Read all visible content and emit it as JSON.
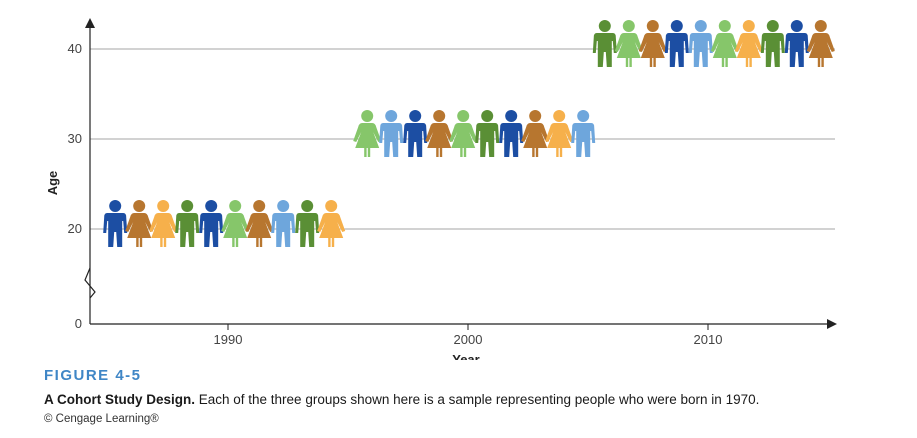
{
  "chart_data": {
    "type": "scatter",
    "title": "",
    "xlabel": "Year",
    "ylabel": "Age",
    "x_ticks": [
      1990,
      2000,
      2010
    ],
    "y_ticks": [
      0,
      20,
      30,
      40
    ],
    "xlim": [
      1984,
      2015
    ],
    "ylim": [
      0,
      45
    ],
    "y_axis_break": true,
    "marker": "person-figure",
    "palette": {
      "dark_blue": "#1c4ea3",
      "light_blue": "#6ea6dc",
      "orange_brown": "#b7762f",
      "light_orange": "#f6b04b",
      "dark_green": "#5a8f35",
      "light_green": "#86c66a"
    },
    "series": [
      {
        "x": [
          1985.3,
          1986.3,
          1987.3,
          1988.3,
          1989.3,
          1990.3,
          1991.3,
          1992.3,
          1993.3,
          1994.3
        ],
        "y": [
          20,
          20,
          20,
          20,
          20,
          20,
          20,
          20,
          20,
          20
        ],
        "figures": [
          {
            "color": "dark_blue",
            "shape": "man"
          },
          {
            "color": "orange_brown",
            "shape": "woman"
          },
          {
            "color": "light_orange",
            "shape": "woman"
          },
          {
            "color": "dark_green",
            "shape": "man"
          },
          {
            "color": "dark_blue",
            "shape": "man"
          },
          {
            "color": "light_green",
            "shape": "woman"
          },
          {
            "color": "orange_brown",
            "shape": "woman"
          },
          {
            "color": "light_blue",
            "shape": "man"
          },
          {
            "color": "dark_green",
            "shape": "man"
          },
          {
            "color": "light_orange",
            "shape": "woman"
          }
        ]
      },
      {
        "x": [
          1995.8,
          1996.8,
          1997.8,
          1998.8,
          1999.8,
          2000.8,
          2001.8,
          2002.8,
          2003.8,
          2004.8
        ],
        "y": [
          30,
          30,
          30,
          30,
          30,
          30,
          30,
          30,
          30,
          30
        ],
        "figures": [
          {
            "color": "light_green",
            "shape": "woman"
          },
          {
            "color": "light_blue",
            "shape": "man"
          },
          {
            "color": "dark_blue",
            "shape": "man"
          },
          {
            "color": "orange_brown",
            "shape": "woman"
          },
          {
            "color": "light_green",
            "shape": "woman"
          },
          {
            "color": "dark_green",
            "shape": "man"
          },
          {
            "color": "dark_blue",
            "shape": "man"
          },
          {
            "color": "orange_brown",
            "shape": "woman"
          },
          {
            "color": "light_orange",
            "shape": "woman"
          },
          {
            "color": "light_blue",
            "shape": "man"
          }
        ]
      },
      {
        "x": [
          2005.7,
          2006.7,
          2007.7,
          2008.7,
          2009.7,
          2010.7,
          2011.7,
          2012.7,
          2013.7,
          2014.7
        ],
        "y": [
          40,
          40,
          40,
          40,
          40,
          40,
          40,
          40,
          40,
          40
        ],
        "figures": [
          {
            "color": "dark_green",
            "shape": "man"
          },
          {
            "color": "light_green",
            "shape": "woman"
          },
          {
            "color": "orange_brown",
            "shape": "woman"
          },
          {
            "color": "dark_blue",
            "shape": "man"
          },
          {
            "color": "light_blue",
            "shape": "man"
          },
          {
            "color": "light_green",
            "shape": "woman"
          },
          {
            "color": "light_orange",
            "shape": "woman"
          },
          {
            "color": "dark_green",
            "shape": "man"
          },
          {
            "color": "dark_blue",
            "shape": "man"
          },
          {
            "color": "orange_brown",
            "shape": "woman"
          }
        ]
      }
    ],
    "grid": true
  },
  "figure": {
    "label": "FIGURE 4-5",
    "caption_bold": "A Cohort Study Design.",
    "caption_text": " Each of the three groups shown here is a sample representing people who were born in 1970.",
    "credit": "© Cengage Learning®"
  }
}
